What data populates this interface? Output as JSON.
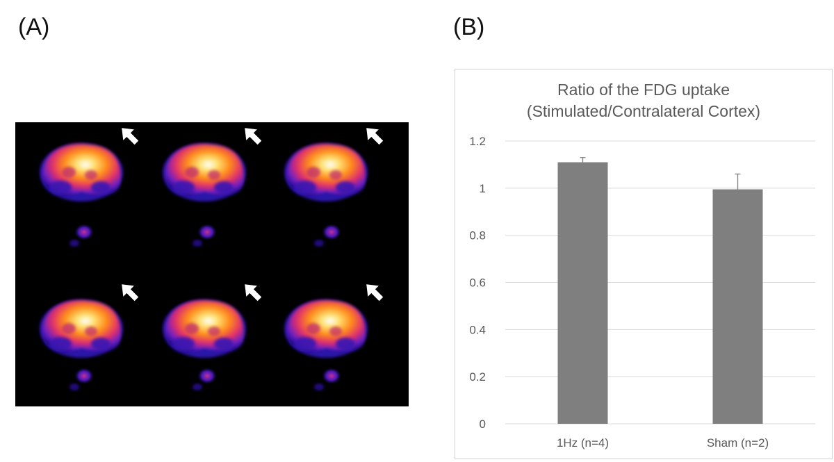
{
  "panels": {
    "a_label": "(A)",
    "b_label": "(B)"
  },
  "pet_image": {
    "rows": 2,
    "columns": 3,
    "arrow_color": "#ffffff",
    "colormap": [
      "#1a0a8c",
      "#6a1fc2",
      "#e0306a",
      "#ff8a1a",
      "#ffe070",
      "#ffffff"
    ]
  },
  "chart_data": {
    "type": "bar",
    "title": [
      "Ratio of the FDG uptake",
      "(Stimulated/Contralateral Cortex)"
    ],
    "categories": [
      "1Hz (n=4)",
      "Sham (n=2)"
    ],
    "values": [
      1.11,
      0.995
    ],
    "error_plus": [
      0.02,
      0.065
    ],
    "ylim": [
      0,
      1.2
    ],
    "yticks": [
      "0",
      "0.2",
      "0.4",
      "0.6",
      "0.8",
      "1",
      "1.2"
    ],
    "ytick_values": [
      0,
      0.2,
      0.4,
      0.6,
      0.8,
      1,
      1.2
    ],
    "bar_color": "#7f7f7f",
    "grid": true,
    "gridline_color": "#d9d9d9"
  }
}
